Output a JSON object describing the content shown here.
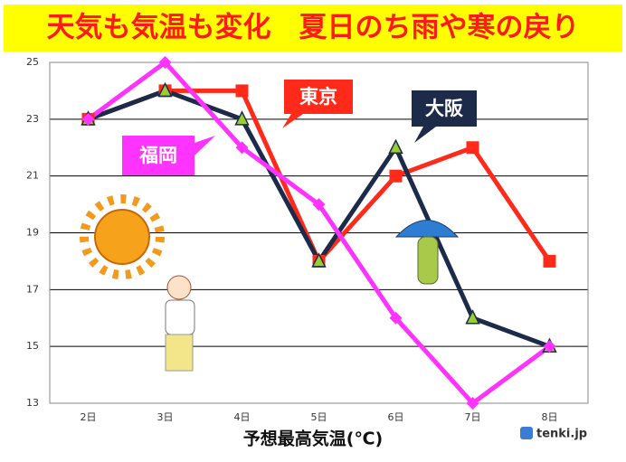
{
  "chart_data": {
    "type": "line",
    "title": "天気も気温も変化　夏日のち雨や寒の戻り",
    "x_label": "予想最高気温(℃)",
    "source": "tenki.jp",
    "categories": [
      "2日",
      "3日",
      "4日",
      "5日",
      "6日",
      "7日",
      "8日"
    ],
    "series": [
      {
        "name": "東京",
        "color": "#ff2a1a",
        "marker": "square",
        "values": [
          23,
          24,
          24,
          18,
          21,
          22,
          18
        ]
      },
      {
        "name": "大阪",
        "color": "#1c2b4a",
        "marker": "triangle",
        "values": [
          23,
          24,
          23,
          18,
          22,
          16,
          15
        ]
      },
      {
        "name": "福岡",
        "color": "#ff33ff",
        "marker": "diamond",
        "values": [
          23,
          25,
          22,
          20,
          16,
          13,
          15
        ]
      }
    ],
    "ylim": [
      13,
      25
    ],
    "yticks": [
      13,
      15,
      17,
      19,
      21,
      23,
      25
    ],
    "grid": true
  }
}
